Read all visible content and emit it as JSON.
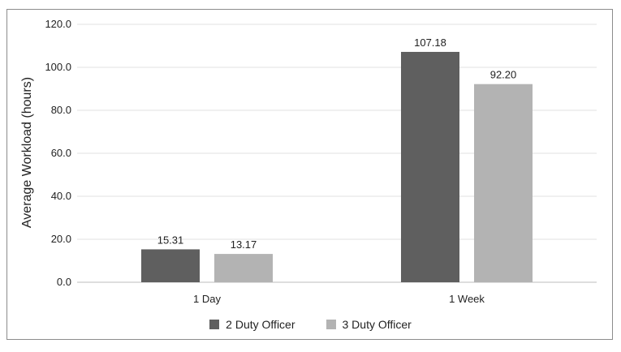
{
  "chart_data": {
    "type": "bar",
    "categories": [
      "1 Day",
      "1 Week"
    ],
    "series": [
      {
        "name": "2 Duty Officer",
        "values": [
          15.31,
          107.18
        ],
        "labels": [
          "15.31",
          "107.18"
        ],
        "color": "#5f5f5f"
      },
      {
        "name": "3 Duty Officer",
        "values": [
          13.17,
          92.2
        ],
        "labels": [
          "13.17",
          "92.20"
        ],
        "color": "#b3b3b3"
      }
    ],
    "ylabel": "Average Workload (hours)",
    "ylim": [
      0,
      120
    ],
    "yticks": [
      "0.0",
      "20.0",
      "40.0",
      "60.0",
      "80.0",
      "100.0",
      "120.0"
    ],
    "grid": true,
    "legend_position": "bottom"
  }
}
